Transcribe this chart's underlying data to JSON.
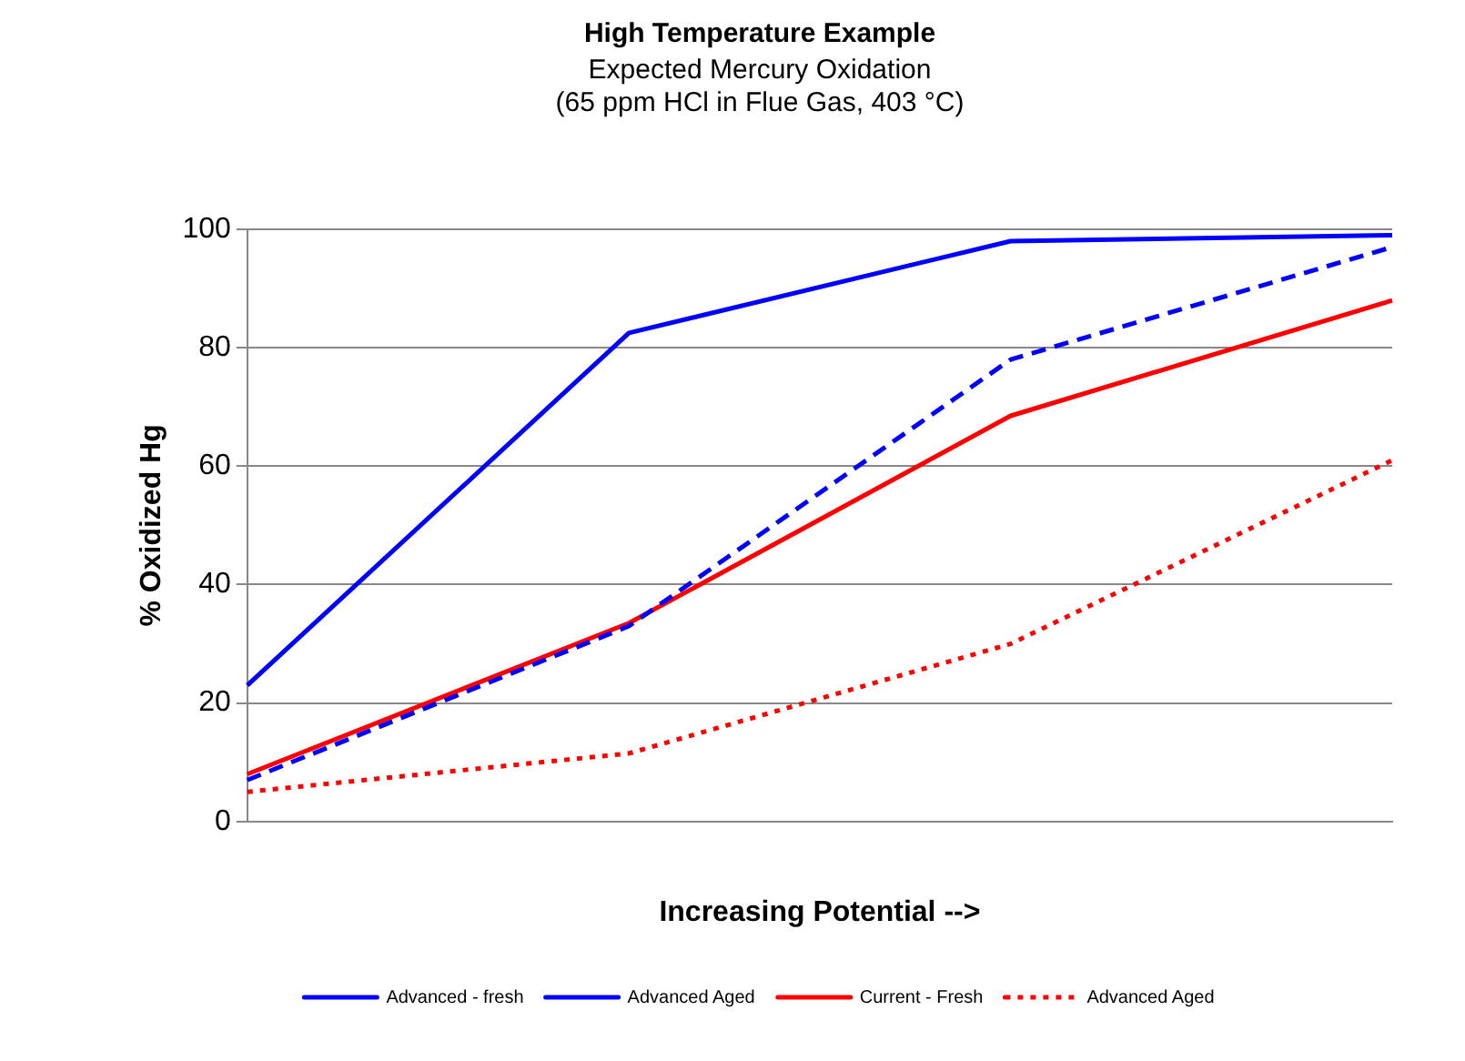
{
  "chart_data": {
    "type": "line",
    "title": "High Temperature Example",
    "subtitle": "Expected Mercury Oxidation\n(65 ppm HCl in Flue Gas, 403 °C)",
    "xlabel": "Increasing Potential -->",
    "ylabel": "% Oxidized Hg",
    "categories": [
      null,
      null,
      null,
      null
    ],
    "series": [
      {
        "name": "Advanced - fresh",
        "color": "#0000ff",
        "line_style": "solid",
        "values": [
          23,
          82.5,
          98,
          99
        ]
      },
      {
        "name": "Advanced Aged",
        "color": "#0000ff",
        "line_style": "dashed",
        "values": [
          7,
          33,
          78,
          97
        ]
      },
      {
        "name": "Current - Fresh",
        "color": "#ff0000",
        "line_style": "solid",
        "values": [
          8,
          33.5,
          68.5,
          88
        ]
      },
      {
        "name": "Advanced Aged",
        "color": "#ff0000",
        "line_style": "dotted",
        "values": [
          5,
          11.5,
          30,
          61
        ]
      }
    ],
    "ylim": [
      0,
      100
    ],
    "yticks": [
      0,
      20,
      40,
      60,
      80,
      100
    ],
    "grid": "y",
    "legend": "bottom",
    "marker": "none"
  }
}
